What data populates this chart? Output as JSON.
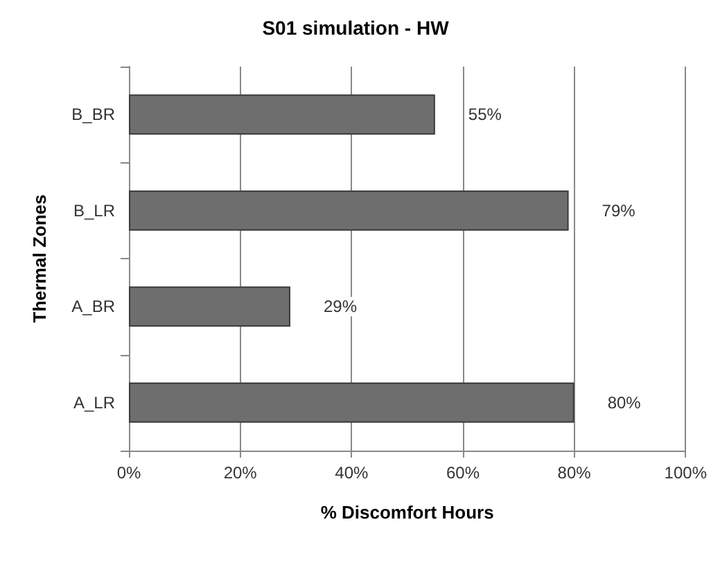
{
  "chart_data": {
    "type": "bar",
    "orientation": "horizontal",
    "title": "S01 simulation - HW",
    "xlabel": "% Discomfort Hours",
    "ylabel": "Thermal Zones",
    "categories": [
      "B_BR",
      "B_LR",
      "A_BR",
      "A_LR"
    ],
    "values": [
      55,
      79,
      29,
      80
    ],
    "color": "#6e6e6e",
    "value_labels": [
      "55%",
      "79%",
      "29%",
      "80%"
    ],
    "xlim": [
      0,
      100
    ],
    "xticks": [
      {
        "value": 0,
        "label": "0%"
      },
      {
        "value": 20,
        "label": "20%"
      },
      {
        "value": 40,
        "label": "40%"
      },
      {
        "value": 60,
        "label": "60%"
      },
      {
        "value": 80,
        "label": "80%"
      },
      {
        "value": 100,
        "label": "100%"
      }
    ],
    "grid": "x"
  }
}
